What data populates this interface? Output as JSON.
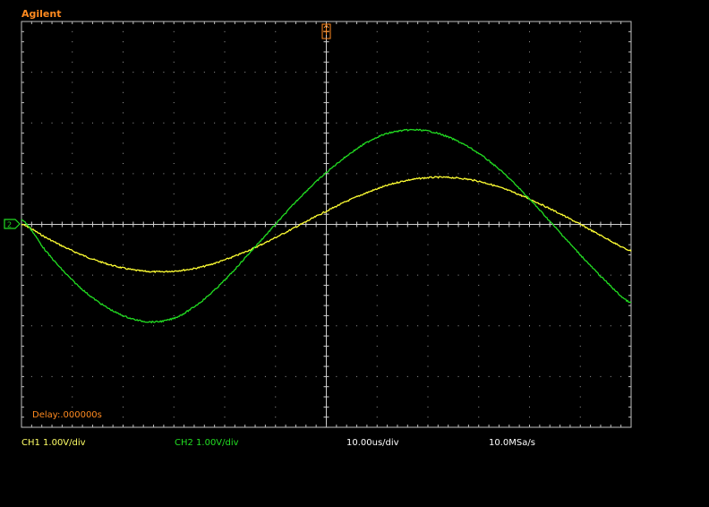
{
  "brand": "Agilent",
  "delay_text": "Delay:.000000s",
  "status_bar": {
    "ch1_scale": "CH1 1.00V/div",
    "ch2_scale": "CH2 1.00V/div",
    "timebase": "10.00us/div",
    "sample_rate": "10.0MSa/s"
  },
  "colors": {
    "ch1": "#ffff33",
    "ch2": "#22dd22",
    "accent": "#ff8a1f",
    "status_text": "#ffff66",
    "grid": "#ffffff",
    "background": "#000000"
  },
  "markers": {
    "trigger_position_icon": "trigger-position-marker",
    "ground_reference_icon": "ground-reference-marker"
  },
  "chart_data": {
    "type": "line",
    "title": "",
    "xlabel": "",
    "ylabel": "",
    "x_unit": "us",
    "y_unit": "V",
    "xlim": [
      -60,
      60
    ],
    "ylim": [
      -4,
      4
    ],
    "x_divisions": 12,
    "y_divisions": 8,
    "grid": true,
    "series": [
      {
        "channel": "CH1",
        "color": "#ffff33",
        "x": [
          -60,
          -55,
          -50,
          -45,
          -40,
          -35,
          -30,
          -25,
          -20,
          -15,
          -10,
          -5,
          0,
          5,
          10,
          15,
          20,
          25,
          30,
          35,
          40,
          45,
          50,
          55,
          60
        ],
        "y": [
          0.0,
          -0.27,
          -0.52,
          -0.72,
          -0.86,
          -0.93,
          -0.92,
          -0.85,
          -0.7,
          -0.5,
          -0.26,
          0.0,
          0.26,
          0.5,
          0.7,
          0.85,
          0.92,
          0.92,
          0.85,
          0.7,
          0.5,
          0.26,
          0.0,
          -0.27,
          -0.52
        ]
      },
      {
        "channel": "CH2",
        "color": "#22dd22",
        "x": [
          -60,
          -55,
          -50,
          -45,
          -40,
          -35,
          -30,
          -25,
          -20,
          -15,
          -10,
          -5,
          0,
          5,
          10,
          15,
          20,
          25,
          30,
          35,
          40,
          45,
          50,
          55,
          60
        ],
        "y": [
          0.1,
          -0.55,
          -1.1,
          -1.52,
          -1.8,
          -1.92,
          -1.85,
          -1.55,
          -1.1,
          -0.55,
          0.0,
          0.55,
          1.02,
          1.42,
          1.72,
          1.85,
          1.84,
          1.68,
          1.4,
          1.0,
          0.5,
          -0.05,
          -0.6,
          -1.12,
          -1.55
        ]
      }
    ]
  }
}
